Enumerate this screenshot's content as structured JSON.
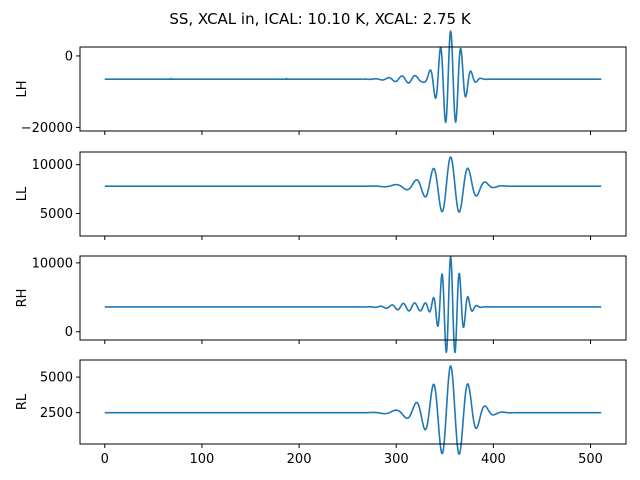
{
  "chart_data": {
    "type": "line",
    "title": "SS, XCAL in, ICAL: 10.10 K, XCAL: 2.75 K",
    "line_color": "#1f77b4",
    "sharex": true,
    "x_range": [
      0,
      511
    ],
    "xlim": [
      -25.5,
      536.5
    ],
    "x_ticks": [
      0,
      100,
      200,
      300,
      400,
      500
    ],
    "x_tick_labels": [
      "0",
      "100",
      "200",
      "300",
      "400",
      "500"
    ],
    "subplots": [
      {
        "ylabel": "LH",
        "ylim": [
          -21000,
          2500
        ],
        "y_ticks": [
          0,
          -20000
        ],
        "y_tick_labels": [
          "0",
          "−20000"
        ],
        "baseline": -6500,
        "center": 356,
        "oscillation_amp": 13500,
        "oscillation_period": 10.5,
        "envelope_width": 11,
        "glitches": [
          {
            "x": 68,
            "y": -6300
          },
          {
            "x": 187,
            "y": -6300
          }
        ]
      },
      {
        "ylabel": "LL",
        "ylim": [
          2700,
          11300
        ],
        "y_ticks": [
          10000,
          5000
        ],
        "y_tick_labels": [
          "10000",
          "5000"
        ],
        "baseline": 7800,
        "center": 356,
        "oscillation_amp": 3000,
        "oscillation_period": 18,
        "envelope_width": 18,
        "glitches": []
      },
      {
        "ylabel": "RH",
        "ylim": [
          -1200,
          11000
        ],
        "y_ticks": [
          10000,
          0
        ],
        "y_tick_labels": [
          "10000",
          "0"
        ],
        "baseline": 3600,
        "center": 356,
        "oscillation_amp": 7300,
        "oscillation_period": 9,
        "envelope_width": 10,
        "glitches": []
      },
      {
        "ylabel": "RL",
        "ylim": [
          300,
          6200
        ],
        "y_ticks": [
          5000,
          2500
        ],
        "y_tick_labels": [
          "5000",
          "2500"
        ],
        "baseline": 2500,
        "center": 356,
        "oscillation_amp": 3300,
        "oscillation_period": 18,
        "envelope_width": 18,
        "glitches": []
      }
    ]
  }
}
